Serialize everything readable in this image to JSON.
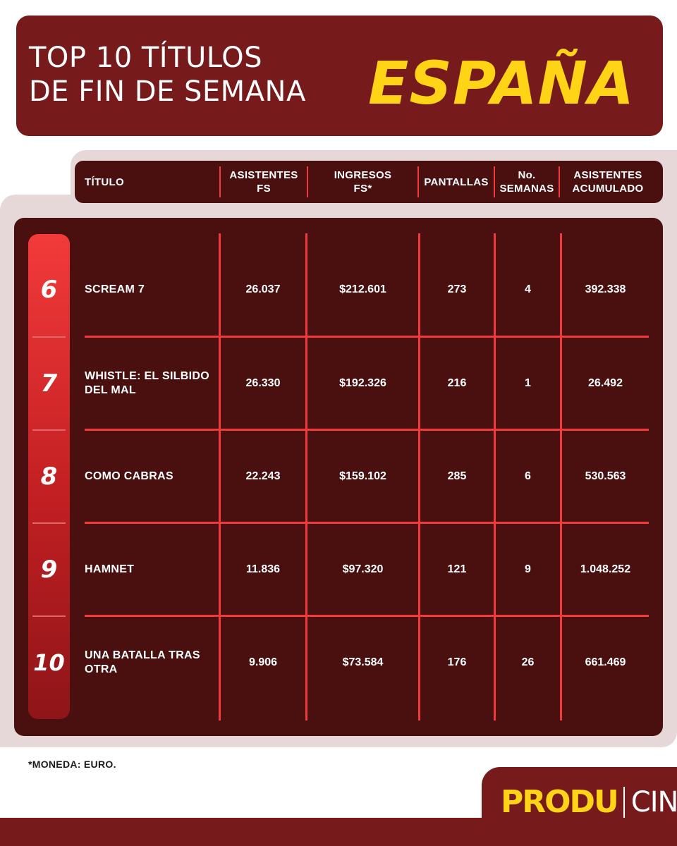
{
  "header": {
    "title_line1": "TOP 10 TÍTULOS",
    "title_line2": "DE FIN DE SEMANA",
    "country": "ESPAÑA"
  },
  "columns": {
    "titulo": "TÍTULO",
    "asistentes_fs_1": "ASISTENTES",
    "asistentes_fs_2": "FS",
    "ingresos_fs_1": "INGRESOS",
    "ingresos_fs_2": "FS*",
    "pantallas": "PANTALLAS",
    "semanas_1": "No.",
    "semanas_2": "SEMANAS",
    "acumulado_1": "ASISTENTES",
    "acumulado_2": "ACUMULADO"
  },
  "rows": [
    {
      "rank": "6",
      "title": "SCREAM 7",
      "asistentes": "26.037",
      "ingresos": "$212.601",
      "pantallas": "273",
      "semanas": "4",
      "acumulado": "392.338"
    },
    {
      "rank": "7",
      "title": "WHISTLE: EL SILBIDO DEL MAL",
      "asistentes": "26.330",
      "ingresos": "$192.326",
      "pantallas": "216",
      "semanas": "1",
      "acumulado": "26.492"
    },
    {
      "rank": "8",
      "title": "COMO CABRAS",
      "asistentes": "22.243",
      "ingresos": "$159.102",
      "pantallas": "285",
      "semanas": "6",
      "acumulado": "530.563"
    },
    {
      "rank": "9",
      "title": "HAMNET",
      "asistentes": "11.836",
      "ingresos": "$97.320",
      "pantallas": "121",
      "semanas": "9",
      "acumulado": "1.048.252"
    },
    {
      "rank": "10",
      "title": "UNA BATALLA TRAS OTRA",
      "asistentes": "9.906",
      "ingresos": "$73.584",
      "pantallas": "176",
      "semanas": "26",
      "acumulado": "661.469"
    }
  ],
  "footnote": "*MONEDA: EURO.",
  "logo": {
    "produ": "PRODU",
    "cine": "CINE"
  },
  "colors": {
    "banner": "#761a1c",
    "panel": "#4a1010",
    "accent_red": "#f23a3a",
    "accent_yellow": "#ffd316",
    "backdrop": "#e6d8d8"
  }
}
